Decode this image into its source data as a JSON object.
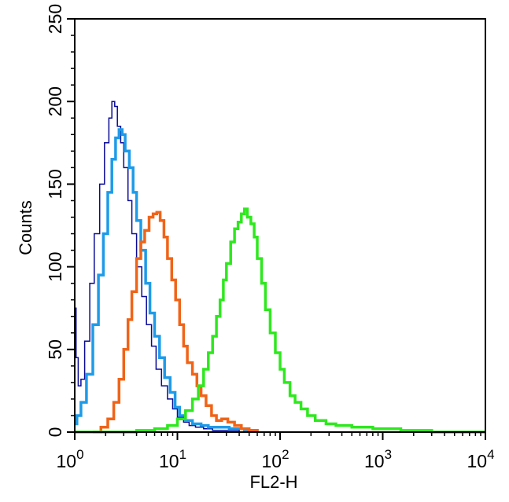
{
  "chart_data": {
    "type": "line",
    "xlabel": "FL2-H",
    "ylabel": "Counts",
    "xscale": "log",
    "xlim": [
      1,
      10000
    ],
    "ylim": [
      0,
      250
    ],
    "grid": false,
    "x_ticks": [
      {
        "value": 1,
        "base": "10",
        "exp": "0"
      },
      {
        "value": 10,
        "base": "10",
        "exp": "1"
      },
      {
        "value": 100,
        "base": "10",
        "exp": "2"
      },
      {
        "value": 1000,
        "base": "10",
        "exp": "3"
      },
      {
        "value": 10000,
        "base": "10",
        "exp": "4"
      }
    ],
    "y_ticks": [
      0,
      50,
      100,
      150,
      200,
      250
    ],
    "series": [
      {
        "color": "#0a0a96",
        "stroke": 1.5,
        "x": [
          1.0,
          1.03,
          1.08,
          1.15,
          1.25,
          1.4,
          1.55,
          1.75,
          1.95,
          2.15,
          2.3,
          2.45,
          2.6,
          2.8,
          3.0,
          3.3,
          3.6,
          4.0,
          4.5,
          5.0,
          5.6,
          6.2,
          7.0,
          8.0,
          9.0,
          10.0,
          11.5,
          13.0,
          15.0,
          18.0,
          22.0,
          30.0,
          40.0
        ],
        "y": [
          75,
          45,
          28,
          32,
          55,
          90,
          120,
          150,
          175,
          190,
          200,
          197,
          185,
          175,
          160,
          140,
          120,
          100,
          82,
          65,
          52,
          38,
          28,
          20,
          14,
          9,
          6,
          4,
          3,
          2,
          1,
          1,
          0
        ]
      },
      {
        "color": "#1e9be8",
        "stroke": 3.5,
        "x": [
          1.0,
          1.05,
          1.15,
          1.3,
          1.5,
          1.7,
          1.9,
          2.1,
          2.3,
          2.5,
          2.7,
          2.9,
          3.1,
          3.4,
          3.7,
          4.0,
          4.4,
          4.9,
          5.4,
          6.0,
          6.7,
          7.5,
          8.5,
          9.5,
          10.5,
          12.0,
          14.0,
          17.0,
          20.0,
          25.0,
          32.0,
          45.0,
          60.0
        ],
        "y": [
          5,
          10,
          18,
          35,
          65,
          95,
          120,
          145,
          165,
          178,
          183,
          180,
          170,
          160,
          145,
          128,
          110,
          90,
          72,
          58,
          45,
          33,
          24,
          15,
          10,
          7,
          5,
          4,
          3,
          3,
          2,
          1,
          0
        ]
      },
      {
        "color": "#f06418",
        "stroke": 3.5,
        "x": [
          1.5,
          1.8,
          2.1,
          2.4,
          2.7,
          3.0,
          3.3,
          3.6,
          4.0,
          4.4,
          4.8,
          5.3,
          5.8,
          6.3,
          6.8,
          7.4,
          8.0,
          8.8,
          9.6,
          10.5,
          11.5,
          12.5,
          14.0,
          15.5,
          17.0,
          19.0,
          21.5,
          24.0,
          27.0,
          31.0,
          36.0,
          42.0,
          50.0,
          60.0
        ],
        "y": [
          0,
          3,
          8,
          18,
          32,
          50,
          68,
          85,
          105,
          115,
          122,
          130,
          132,
          133,
          128,
          118,
          105,
          92,
          80,
          65,
          52,
          42,
          35,
          28,
          22,
          16,
          10,
          7,
          8,
          6,
          4,
          2,
          1,
          0
        ]
      },
      {
        "color": "#2ee81e",
        "stroke": 3.5,
        "x": [
          1.0,
          2.0,
          4.0,
          6.0,
          8.0,
          10.0,
          12.0,
          14.0,
          16.0,
          18.0,
          20.0,
          22.0,
          24.0,
          26.0,
          28.0,
          30.0,
          33.0,
          36.0,
          39.0,
          42.0,
          45.0,
          48.0,
          52.0,
          56.0,
          60.0,
          66.0,
          72.0,
          80.0,
          90.0,
          100.0,
          110.0,
          125.0,
          140.0,
          160.0,
          185.0,
          220.0,
          280.0,
          350.0,
          500.0,
          800.0,
          1500.0,
          3000.0,
          10000.0
        ],
        "y": [
          0,
          0,
          1,
          2,
          4,
          8,
          13,
          20,
          28,
          38,
          48,
          58,
          70,
          80,
          92,
          102,
          115,
          123,
          127,
          132,
          135,
          130,
          126,
          118,
          105,
          90,
          74,
          60,
          48,
          38,
          30,
          22,
          18,
          14,
          10,
          7,
          5,
          4,
          3,
          2,
          1,
          0,
          0
        ]
      }
    ]
  }
}
